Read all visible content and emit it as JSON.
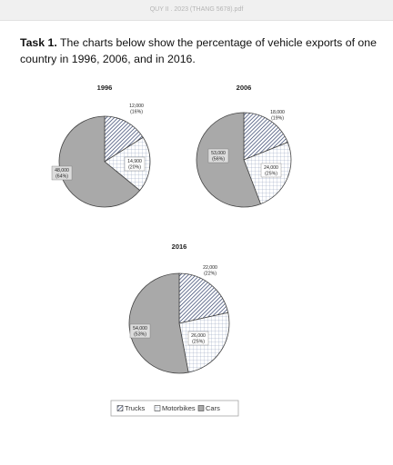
{
  "header": {
    "filename": "QUY II . 2023 (THANG 5678).pdf"
  },
  "task": {
    "label": "Task 1.",
    "text": "The charts below show the percentage of vehicle exports of one country in 1996, 2006, and in 2016."
  },
  "legend": [
    "Trucks",
    "Motorbikes",
    "Cars"
  ],
  "chart_data": [
    {
      "type": "pie",
      "title": "1996",
      "values": [
        12000,
        14900,
        48000
      ],
      "value_labels": [
        "12,000",
        "14,900",
        "48,000"
      ],
      "percent_labels": [
        "(16%)",
        "(20%)",
        "(64%)"
      ]
    },
    {
      "type": "pie",
      "title": "2006",
      "values": [
        18000,
        24000,
        53000
      ],
      "value_labels": [
        "18,000",
        "24,000",
        "53,000"
      ],
      "percent_labels": [
        "(19%)",
        "(25%)",
        "(56%)"
      ]
    },
    {
      "type": "pie",
      "title": "2016",
      "values": [
        22000,
        26000,
        54000
      ],
      "value_labels": [
        "22,000",
        "26,000",
        "54,000"
      ],
      "percent_labels": [
        "(22%)",
        "(25%)",
        "(53%)"
      ]
    }
  ]
}
